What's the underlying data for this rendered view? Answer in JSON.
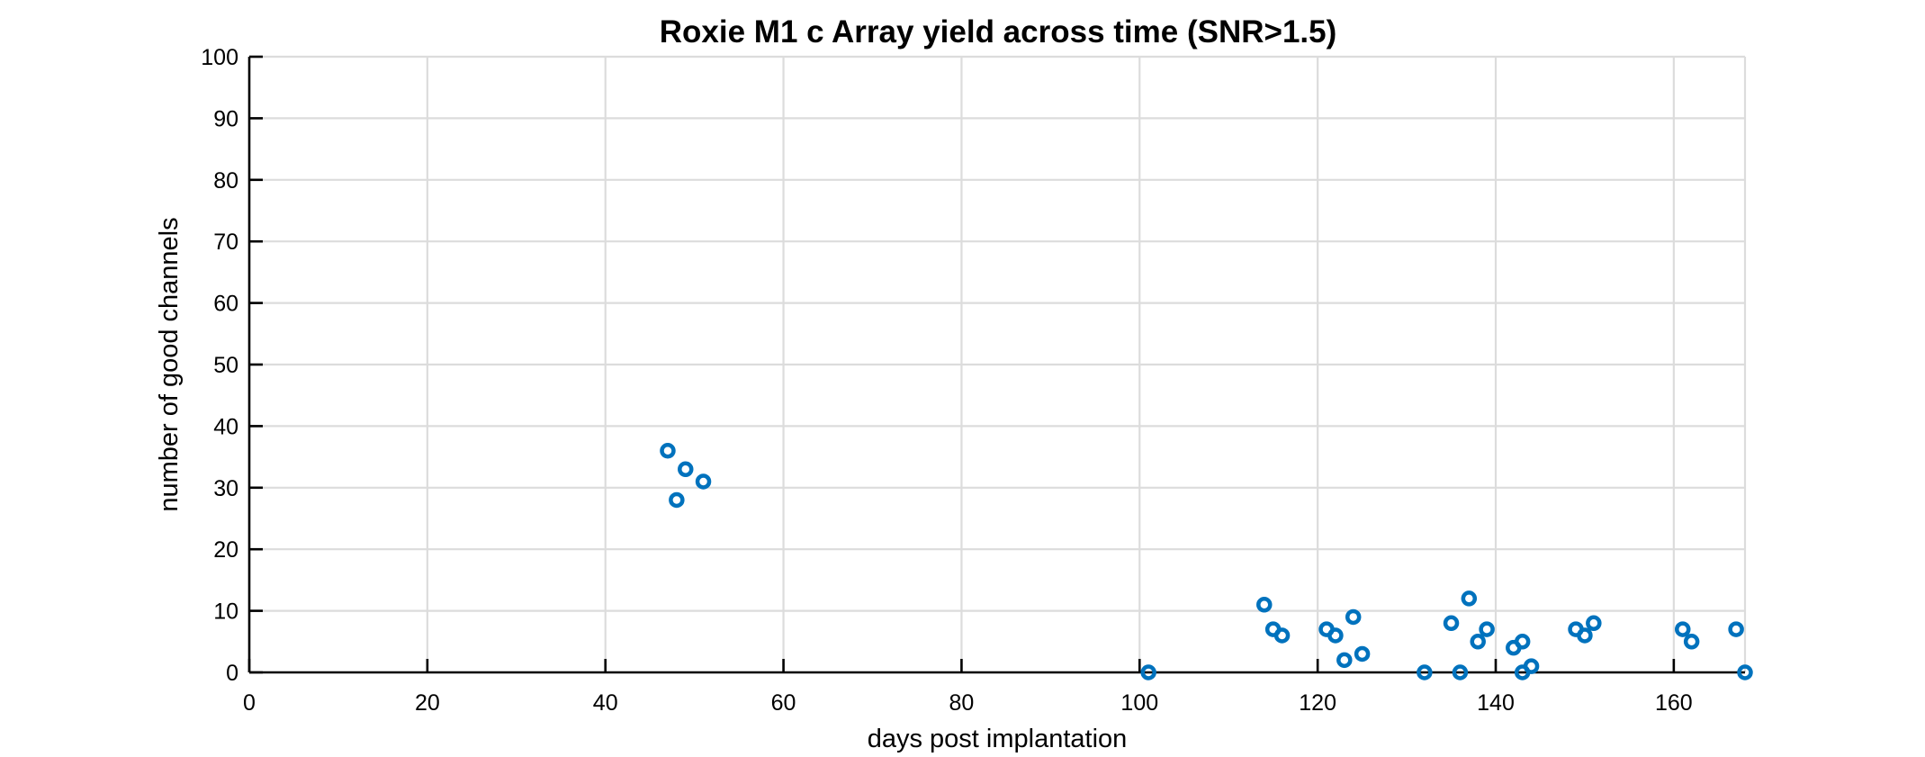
{
  "chart_data": {
    "type": "scatter",
    "title": "Roxie M1 c Array yield across time (SNR>1.5)",
    "xlabel": "days post implantation",
    "ylabel": "number of good channels",
    "xlim": [
      0,
      168
    ],
    "ylim": [
      0,
      100
    ],
    "xticks": [
      0,
      20,
      40,
      60,
      80,
      100,
      120,
      140,
      160
    ],
    "xtick_labels": [
      "0",
      "20",
      "40",
      "60",
      "80",
      "100",
      "120",
      "140",
      "160"
    ],
    "yticks": [
      0,
      10,
      20,
      30,
      40,
      50,
      60,
      70,
      80,
      90,
      100
    ],
    "ytick_labels": [
      "0",
      "10",
      "20",
      "30",
      "40",
      "50",
      "60",
      "70",
      "80",
      "90",
      "100"
    ],
    "grid": true,
    "legend": "none",
    "marker": "open-circle",
    "color": "#0072BD",
    "series": [
      {
        "x": [
          47,
          48,
          49,
          51,
          101,
          114,
          115,
          116,
          121,
          122,
          123,
          124,
          125,
          132,
          135,
          136,
          137,
          138,
          139,
          142,
          143,
          143,
          144,
          149,
          150,
          151,
          161,
          162,
          167,
          168
        ],
        "y": [
          36,
          28,
          33,
          31,
          0,
          11,
          7,
          6,
          7,
          6,
          2,
          9,
          3,
          0,
          8,
          0,
          12,
          5,
          7,
          4,
          5,
          0,
          1,
          7,
          6,
          8,
          7,
          5,
          7,
          0
        ]
      }
    ]
  }
}
